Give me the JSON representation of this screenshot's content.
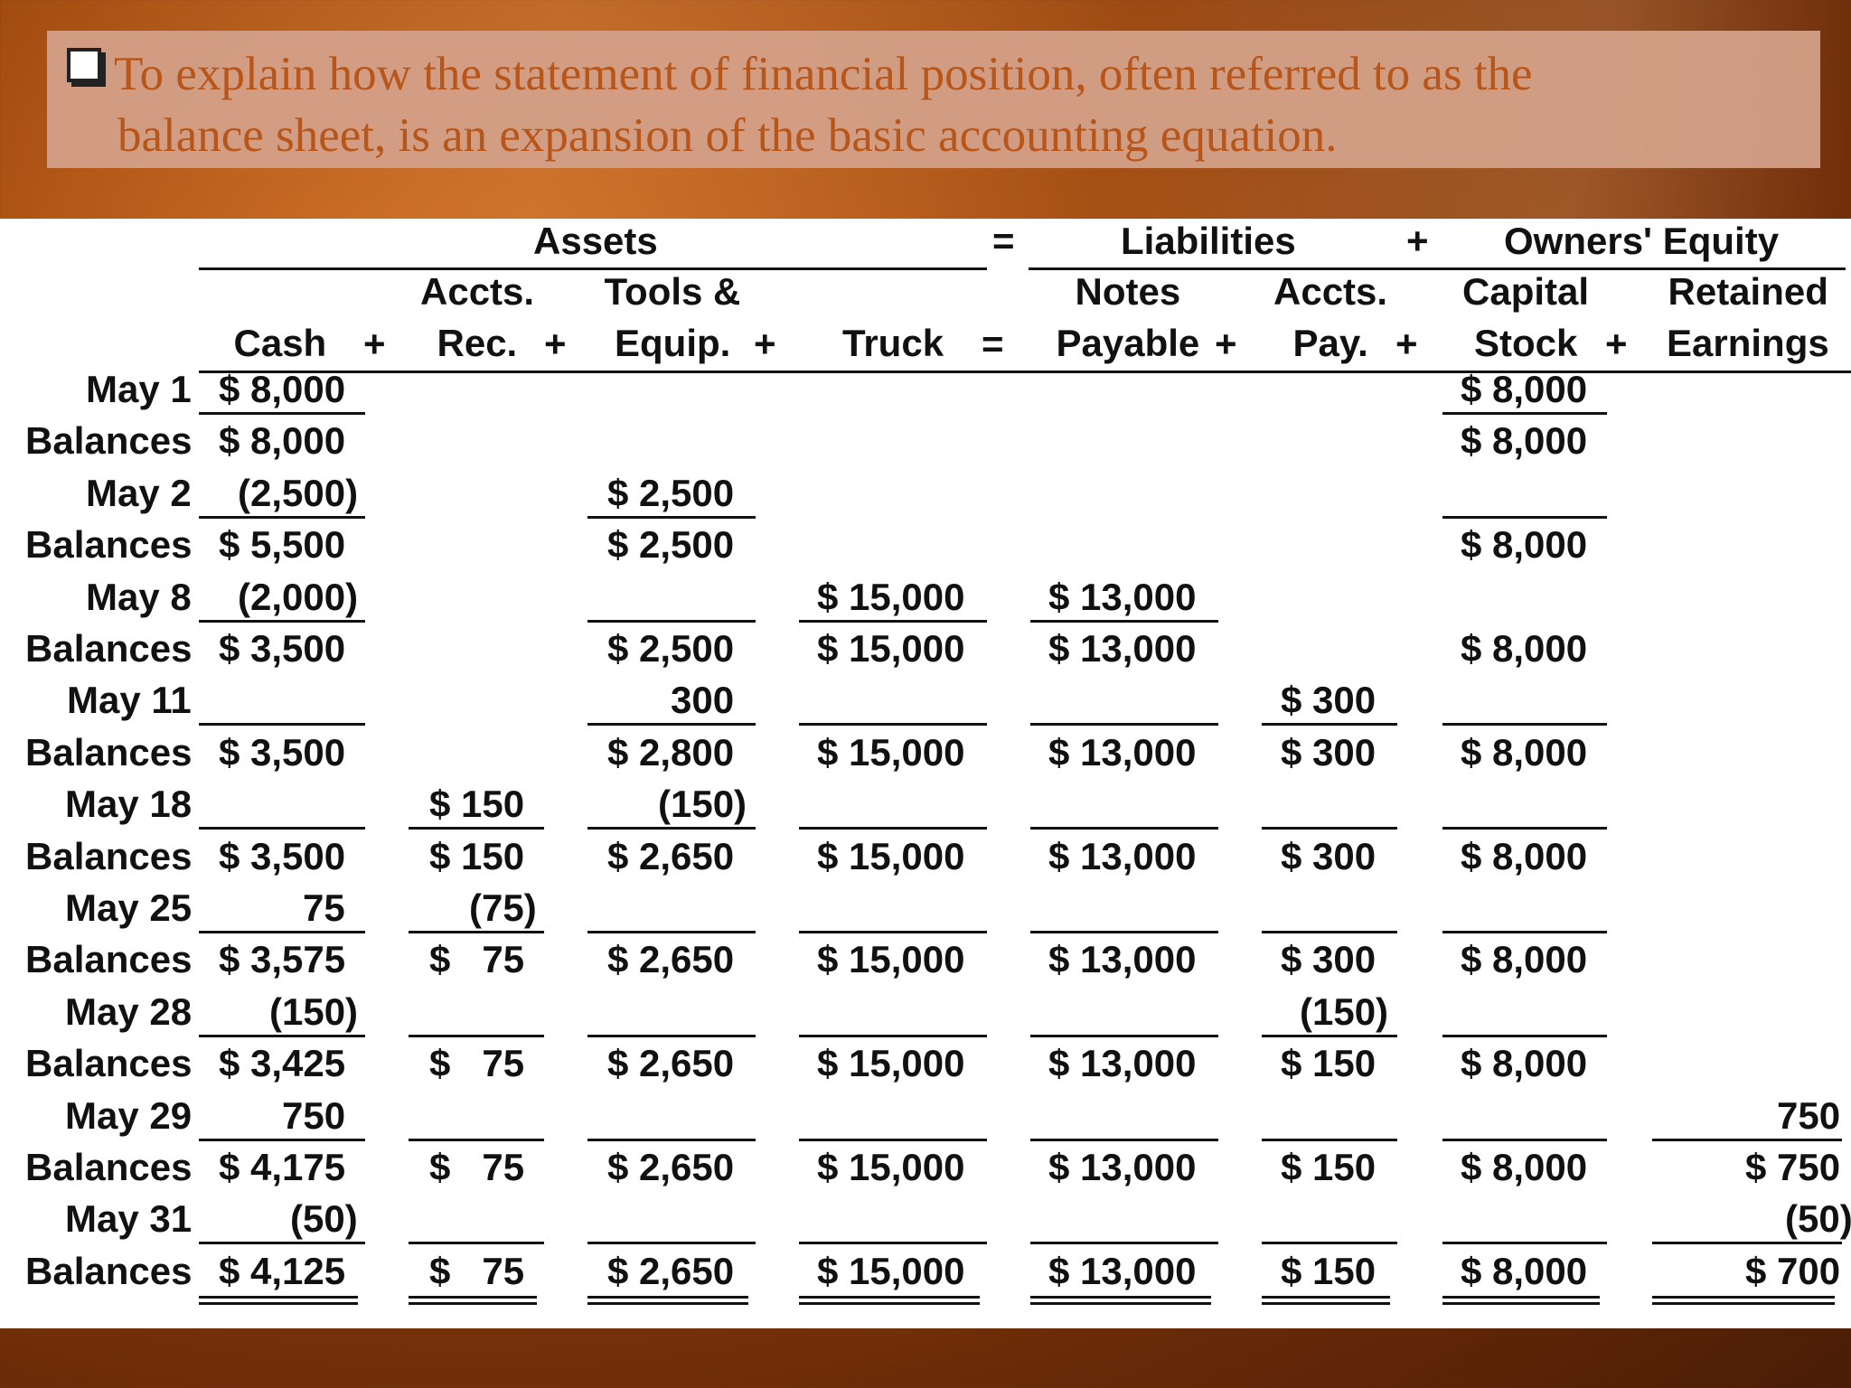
{
  "banner": {
    "line1": "To explain how the statement of financial position, often referred to as the",
    "line2": "balance sheet, is an expansion of the basic accounting equation."
  },
  "table": {
    "groups": {
      "assets": "Assets",
      "eq": "=",
      "liabilities": "Liabilities",
      "plus": "+",
      "equity": "Owners' Equity"
    },
    "headers": {
      "row1": [
        "",
        "Accts.",
        "Tools &",
        "",
        "Notes",
        "Accts.",
        "Capital",
        "Retained"
      ],
      "row2": [
        "Cash",
        "Rec.",
        "Equip.",
        "Truck",
        "Payable",
        "Pay.",
        "Stock",
        "Earnings"
      ],
      "ops": [
        "+",
        "+",
        "+",
        "=",
        "+",
        "+",
        "+"
      ]
    },
    "rows": [
      {
        "label": "May 1",
        "cells": [
          "$ 8,000",
          "",
          "",
          "",
          "",
          "",
          "$ 8,000",
          ""
        ]
      },
      {
        "label": "Balances",
        "cells": [
          "$ 8,000",
          "",
          "",
          "",
          "",
          "",
          "$ 8,000",
          ""
        ]
      },
      {
        "label": "May 2",
        "cells": [
          "(2,500)",
          "",
          "$ 2,500",
          "",
          "",
          "",
          "",
          ""
        ]
      },
      {
        "label": "Balances",
        "cells": [
          "$ 5,500",
          "",
          "$ 2,500",
          "",
          "",
          "",
          "$ 8,000",
          ""
        ]
      },
      {
        "label": "May 8",
        "cells": [
          "(2,000)",
          "",
          "",
          "$ 15,000",
          "$ 13,000",
          "",
          "",
          ""
        ]
      },
      {
        "label": "Balances",
        "cells": [
          "$ 3,500",
          "",
          "$ 2,500",
          "$ 15,000",
          "$ 13,000",
          "",
          "$ 8,000",
          ""
        ]
      },
      {
        "label": "May 11",
        "cells": [
          "",
          "",
          "300",
          "",
          "",
          "$ 300",
          "",
          ""
        ]
      },
      {
        "label": "Balances",
        "cells": [
          "$ 3,500",
          "",
          "$ 2,800",
          "$ 15,000",
          "$ 13,000",
          "$ 300",
          "$ 8,000",
          ""
        ]
      },
      {
        "label": "May 18",
        "cells": [
          "",
          "$ 150",
          "(150)",
          "",
          "",
          "",
          "",
          ""
        ]
      },
      {
        "label": "Balances",
        "cells": [
          "$ 3,500",
          "$ 150",
          "$ 2,650",
          "$ 15,000",
          "$ 13,000",
          "$ 300",
          "$ 8,000",
          ""
        ]
      },
      {
        "label": "May 25",
        "cells": [
          "75",
          "(75)",
          "",
          "",
          "",
          "",
          "",
          ""
        ]
      },
      {
        "label": "Balances",
        "cells": [
          "$ 3,575",
          "$   75",
          "$ 2,650",
          "$ 15,000",
          "$ 13,000",
          "$ 300",
          "$ 8,000",
          ""
        ]
      },
      {
        "label": "May 28",
        "cells": [
          "(150)",
          "",
          "",
          "",
          "",
          "(150)",
          "",
          ""
        ]
      },
      {
        "label": "Balances",
        "cells": [
          "$ 3,425",
          "$   75",
          "$ 2,650",
          "$ 15,000",
          "$ 13,000",
          "$ 150",
          "$ 8,000",
          ""
        ]
      },
      {
        "label": "May 29",
        "cells": [
          "750",
          "",
          "",
          "",
          "",
          "",
          "",
          "750"
        ]
      },
      {
        "label": "Balances",
        "cells": [
          "$ 4,175",
          "$   75",
          "$ 2,650",
          "$ 15,000",
          "$ 13,000",
          "$ 150",
          "$ 8,000",
          "$ 750"
        ]
      },
      {
        "label": "May 31",
        "cells": [
          "(50)",
          "",
          "",
          "",
          "",
          "",
          "",
          "(50)"
        ]
      },
      {
        "label": "Balances",
        "cells": [
          "$ 4,125",
          "$   75",
          "$ 2,650",
          "$ 15,000",
          "$ 13,000",
          "$ 150",
          "$ 8,000",
          "$ 700"
        ]
      }
    ]
  }
}
